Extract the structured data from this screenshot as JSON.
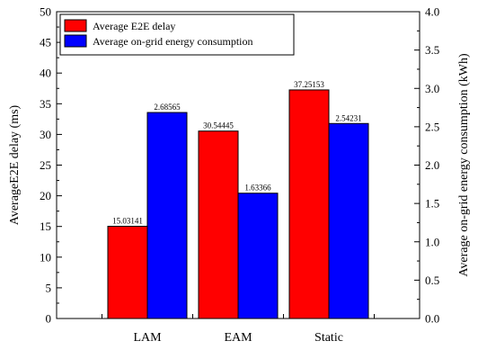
{
  "chart_data": {
    "type": "bar",
    "categories": [
      "LAM",
      "EAM",
      "Static"
    ],
    "series": [
      {
        "name": "Average E2E delay",
        "axis": "left",
        "color": "#ff0000",
        "values": [
          15.03141,
          30.54445,
          37.25153
        ],
        "value_labels": [
          "15.03141",
          "30.54445",
          "37.25153"
        ]
      },
      {
        "name": "Average on-grid energy consumption",
        "axis": "right",
        "color": "#0000ff",
        "values": [
          2.68565,
          1.63366,
          2.54231
        ],
        "value_labels": [
          "2.68565",
          "1.63366",
          "2.54231"
        ]
      }
    ],
    "y_left": {
      "label": "AverageE2E delay (ms)",
      "ylim": [
        0,
        50
      ],
      "ticks": [
        0,
        5,
        10,
        15,
        20,
        25,
        30,
        35,
        40,
        45,
        50
      ],
      "tick_labels": [
        "0",
        "5",
        "10",
        "15",
        "20",
        "25",
        "30",
        "35",
        "40",
        "45",
        "50"
      ]
    },
    "y_right": {
      "label": "Average on-grid energy consumption (kWh)",
      "ylim": [
        0,
        4.0
      ],
      "ticks": [
        0,
        0.5,
        1.0,
        1.5,
        2.0,
        2.5,
        3.0,
        3.5,
        4.0
      ],
      "tick_labels": [
        "0.0",
        "0.5",
        "1.0",
        "1.5",
        "2.0",
        "2.5",
        "3.0",
        "3.5",
        "4.0"
      ]
    },
    "legend": {
      "placement": "top-left"
    },
    "grid": false
  }
}
